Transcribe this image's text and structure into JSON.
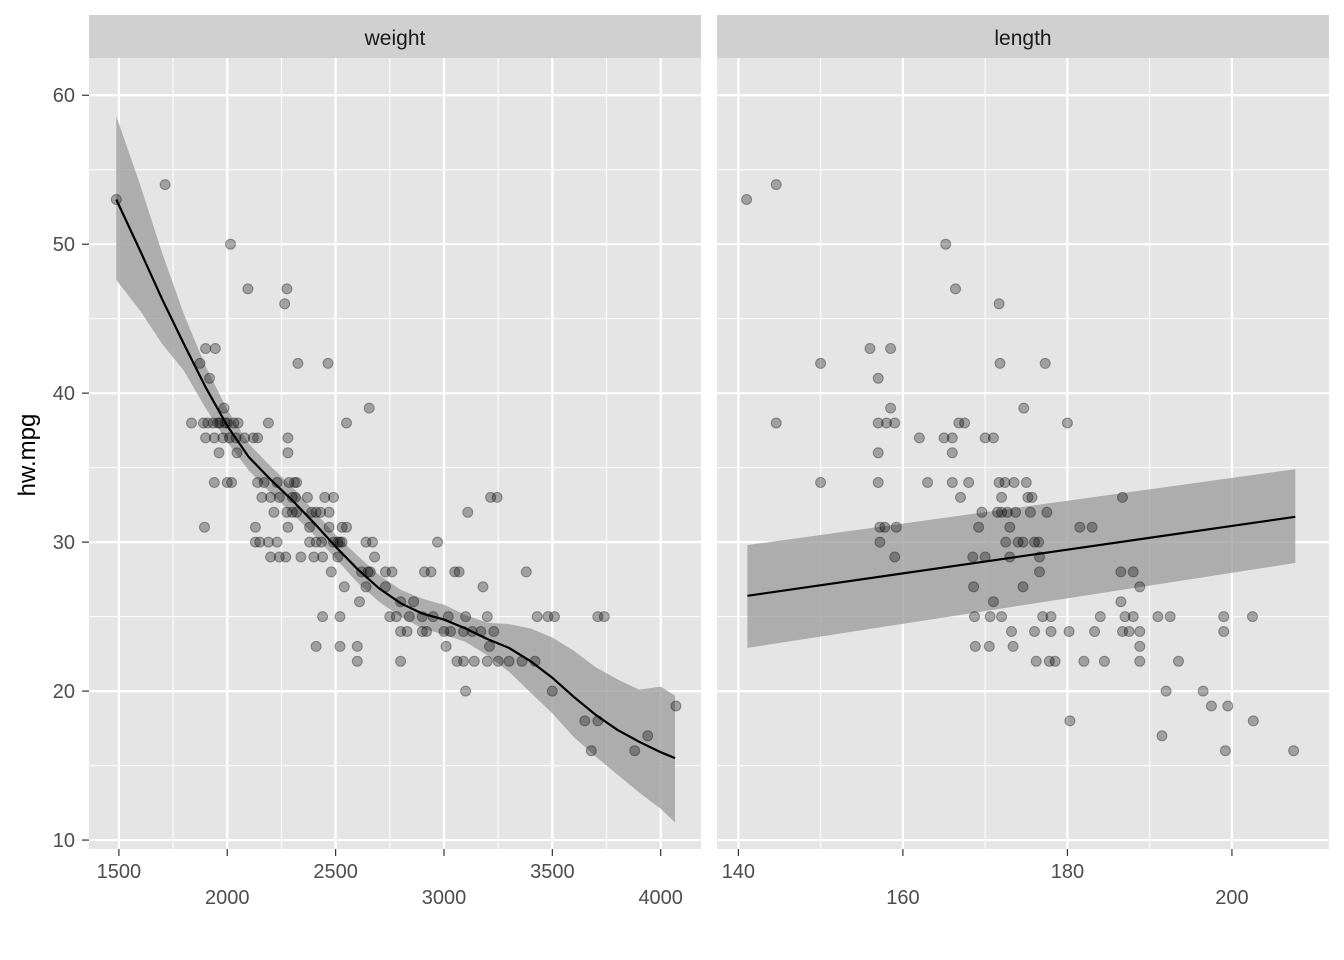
{
  "chart_data": {
    "type": "scatter",
    "ylabel": "hw.mpg",
    "ylim": [
      9.4,
      62.5
    ],
    "yticks": [
      10,
      20,
      30,
      40,
      50,
      60
    ],
    "colors": {
      "panel_bg": "#e5e5e5",
      "strip_bg": "#d0d0d0",
      "grid": "#ffffff",
      "point": "#000000",
      "ribbon": "#999999",
      "line": "#000000"
    },
    "panels": [
      {
        "strip": "weight",
        "xlim": [
          1362,
          4186
        ],
        "xticks": [
          1500,
          2000,
          2500,
          3000,
          3500,
          4000
        ],
        "xlabels_top": [
          "1500",
          "2500",
          "3500"
        ],
        "xlabels_bottom": [
          "2000",
          "3000",
          "4000"
        ],
        "points": [
          [
            1488,
            53
          ],
          [
            1713,
            54
          ],
          [
            1874,
            42
          ],
          [
            1900,
            43
          ],
          [
            1918,
            41
          ],
          [
            1945,
            43
          ],
          [
            2015,
            50
          ],
          [
            2095,
            47
          ],
          [
            2265,
            46
          ],
          [
            2275,
            47
          ],
          [
            2326,
            42
          ],
          [
            2465,
            42
          ],
          [
            2655,
            39
          ],
          [
            1985,
            39
          ],
          [
            1957,
            38
          ],
          [
            1990,
            38
          ],
          [
            1835,
            38
          ],
          [
            1890,
            38
          ],
          [
            1910,
            38
          ],
          [
            1935,
            38
          ],
          [
            1965,
            38
          ],
          [
            2000,
            38
          ],
          [
            2030,
            38
          ],
          [
            2050,
            38
          ],
          [
            2190,
            38
          ],
          [
            2550,
            38
          ],
          [
            1900,
            37
          ],
          [
            1940,
            37
          ],
          [
            1980,
            37
          ],
          [
            2010,
            37
          ],
          [
            2040,
            37
          ],
          [
            2080,
            37
          ],
          [
            2120,
            37
          ],
          [
            2140,
            37
          ],
          [
            2280,
            37
          ],
          [
            1962,
            36
          ],
          [
            2045,
            36
          ],
          [
            2280,
            36
          ],
          [
            1940,
            34
          ],
          [
            2000,
            34
          ],
          [
            2020,
            34
          ],
          [
            2140,
            34
          ],
          [
            2170,
            34
          ],
          [
            2230,
            34
          ],
          [
            2285,
            34
          ],
          [
            2310,
            34
          ],
          [
            2320,
            34
          ],
          [
            2160,
            33
          ],
          [
            2200,
            33
          ],
          [
            2240,
            33
          ],
          [
            2300,
            33
          ],
          [
            2315,
            33
          ],
          [
            2370,
            33
          ],
          [
            2450,
            33
          ],
          [
            2490,
            33
          ],
          [
            3215,
            33
          ],
          [
            3245,
            33
          ],
          [
            2215,
            32
          ],
          [
            2275,
            32
          ],
          [
            2300,
            32
          ],
          [
            2320,
            32
          ],
          [
            2390,
            32
          ],
          [
            2410,
            32
          ],
          [
            2430,
            32
          ],
          [
            2470,
            32
          ],
          [
            3110,
            32
          ],
          [
            1895,
            31
          ],
          [
            2130,
            31
          ],
          [
            2280,
            31
          ],
          [
            2380,
            31
          ],
          [
            2470,
            31
          ],
          [
            2530,
            31
          ],
          [
            2550,
            31
          ],
          [
            2380,
            30
          ],
          [
            2410,
            30
          ],
          [
            2435,
            30
          ],
          [
            2130,
            30
          ],
          [
            2150,
            30
          ],
          [
            2190,
            30
          ],
          [
            2230,
            30
          ],
          [
            2490,
            30
          ],
          [
            2510,
            30
          ],
          [
            2520,
            30
          ],
          [
            2530,
            30
          ],
          [
            2640,
            30
          ],
          [
            2670,
            30
          ],
          [
            2970,
            30
          ],
          [
            2200,
            29
          ],
          [
            2240,
            29
          ],
          [
            2270,
            29
          ],
          [
            2340,
            29
          ],
          [
            2400,
            29
          ],
          [
            2440,
            29
          ],
          [
            2510,
            29
          ],
          [
            2680,
            29
          ],
          [
            2480,
            28
          ],
          [
            2620,
            28
          ],
          [
            2650,
            28
          ],
          [
            2660,
            28
          ],
          [
            2730,
            28
          ],
          [
            2760,
            28
          ],
          [
            2910,
            28
          ],
          [
            2940,
            28
          ],
          [
            3050,
            28
          ],
          [
            3070,
            28
          ],
          [
            3380,
            28
          ],
          [
            2540,
            27
          ],
          [
            2640,
            27
          ],
          [
            2730,
            27
          ],
          [
            3180,
            27
          ],
          [
            2610,
            26
          ],
          [
            2800,
            26
          ],
          [
            2860,
            26
          ],
          [
            2440,
            25
          ],
          [
            2520,
            25
          ],
          [
            2750,
            25
          ],
          [
            2780,
            25
          ],
          [
            2840,
            25
          ],
          [
            2900,
            25
          ],
          [
            2950,
            25
          ],
          [
            3020,
            25
          ],
          [
            3100,
            25
          ],
          [
            3200,
            25
          ],
          [
            3430,
            25
          ],
          [
            3480,
            25
          ],
          [
            3510,
            25
          ],
          [
            3710,
            25
          ],
          [
            3740,
            25
          ],
          [
            2800,
            24
          ],
          [
            2830,
            24
          ],
          [
            2900,
            24
          ],
          [
            2920,
            24
          ],
          [
            3000,
            24
          ],
          [
            3030,
            24
          ],
          [
            3090,
            24
          ],
          [
            3130,
            24
          ],
          [
            3170,
            24
          ],
          [
            3230,
            24
          ],
          [
            2410,
            23
          ],
          [
            2520,
            23
          ],
          [
            2600,
            23
          ],
          [
            3010,
            23
          ],
          [
            3210,
            23
          ],
          [
            2600,
            22
          ],
          [
            2800,
            22
          ],
          [
            3060,
            22
          ],
          [
            3090,
            22
          ],
          [
            3140,
            22
          ],
          [
            3200,
            22
          ],
          [
            3250,
            22
          ],
          [
            3300,
            22
          ],
          [
            3360,
            22
          ],
          [
            3420,
            22
          ],
          [
            3100,
            20
          ],
          [
            3500,
            20
          ],
          [
            3650,
            18
          ],
          [
            3710,
            18
          ],
          [
            3880,
            16
          ],
          [
            3680,
            16
          ],
          [
            3940,
            17
          ],
          [
            4070,
            19
          ]
        ],
        "fit": {
          "x": [
            1488,
            1600,
            1700,
            1800,
            1900,
            2000,
            2100,
            2200,
            2300,
            2400,
            2500,
            2600,
            2700,
            2800,
            2900,
            3000,
            3100,
            3200,
            3300,
            3400,
            3500,
            3600,
            3700,
            3800,
            3900,
            4000,
            4066
          ],
          "y": [
            53,
            49.5,
            46.3,
            43.3,
            40.4,
            37.8,
            35.7,
            34.2,
            32.8,
            31.3,
            29.7,
            28.2,
            26.9,
            25.9,
            25.2,
            24.8,
            24.2,
            23.5,
            22.9,
            22.0,
            20.9,
            19.6,
            18.4,
            17.4,
            16.6,
            15.9,
            15.5
          ],
          "lower": [
            47.6,
            45.5,
            43.3,
            41.5,
            39.0,
            36.7,
            34.8,
            33.3,
            31.9,
            30.5,
            28.9,
            27.3,
            26.0,
            25.0,
            24.2,
            23.8,
            23.3,
            22.4,
            21.3,
            19.9,
            18.5,
            16.9,
            15.6,
            14.4,
            13.2,
            12.1,
            11.2
          ],
          "upper": [
            58.6,
            53.9,
            49.4,
            45.3,
            41.8,
            38.9,
            36.6,
            35.1,
            33.7,
            32.1,
            30.5,
            29.1,
            27.8,
            26.8,
            26.2,
            25.8,
            25.1,
            24.6,
            24.5,
            24.2,
            23.6,
            22.7,
            21.6,
            20.8,
            20.1,
            20.3,
            19.7
          ]
        }
      },
      {
        "strip": "length",
        "xlim": [
          137.4,
          211.8
        ],
        "xticks": [
          140,
          160,
          180,
          200
        ],
        "xlabels_top": [
          "140",
          "180"
        ],
        "xlabels_bottom": [
          "160",
          "200"
        ],
        "points": [
          [
            141,
            53
          ],
          [
            144.6,
            54
          ],
          [
            144.6,
            38
          ],
          [
            150,
            42
          ],
          [
            150,
            34
          ],
          [
            156,
            43
          ],
          [
            157,
            41
          ],
          [
            157,
            38
          ],
          [
            157,
            36
          ],
          [
            157,
            34
          ],
          [
            157.2,
            31
          ],
          [
            157.8,
            31
          ],
          [
            157.2,
            30
          ],
          [
            158,
            38
          ],
          [
            158.5,
            39
          ],
          [
            158.5,
            43
          ],
          [
            159,
            38
          ],
          [
            159.2,
            31
          ],
          [
            159,
            29
          ],
          [
            162,
            37
          ],
          [
            163,
            34
          ],
          [
            165,
            37
          ],
          [
            165.2,
            50
          ],
          [
            166,
            37
          ],
          [
            166.4,
            47
          ],
          [
            166,
            34
          ],
          [
            166,
            36
          ],
          [
            166.8,
            38
          ],
          [
            167,
            33
          ],
          [
            167.5,
            38
          ],
          [
            168,
            34
          ],
          [
            168.5,
            29
          ],
          [
            168.6,
            27
          ],
          [
            168.7,
            25
          ],
          [
            168.8,
            23
          ],
          [
            169.2,
            31
          ],
          [
            169.6,
            32
          ],
          [
            170,
            37
          ],
          [
            170,
            29
          ],
          [
            170.5,
            23
          ],
          [
            170.6,
            25
          ],
          [
            171,
            37
          ],
          [
            171,
            26
          ],
          [
            171.5,
            32
          ],
          [
            171.7,
            34
          ],
          [
            171.7,
            46
          ],
          [
            171.8,
            42
          ],
          [
            172,
            33
          ],
          [
            172,
            32
          ],
          [
            172,
            25
          ],
          [
            172.4,
            34
          ],
          [
            172.5,
            30
          ],
          [
            172.7,
            32
          ],
          [
            173,
            31
          ],
          [
            173,
            29
          ],
          [
            173.2,
            24
          ],
          [
            173.4,
            23
          ],
          [
            173.5,
            34
          ],
          [
            173.7,
            32
          ],
          [
            174,
            30
          ],
          [
            174.6,
            27
          ],
          [
            174.6,
            30
          ],
          [
            174.7,
            39
          ],
          [
            175,
            34
          ],
          [
            175.2,
            33
          ],
          [
            175.5,
            32
          ],
          [
            175.7,
            33
          ],
          [
            176,
            30
          ],
          [
            176,
            24
          ],
          [
            176.2,
            22
          ],
          [
            176.5,
            30
          ],
          [
            176.6,
            29
          ],
          [
            176.6,
            28
          ],
          [
            177,
            25
          ],
          [
            177.3,
            42
          ],
          [
            177.5,
            32
          ],
          [
            177.8,
            22
          ],
          [
            178,
            24
          ],
          [
            178,
            25
          ],
          [
            178.5,
            22
          ],
          [
            180,
            38
          ],
          [
            180.2,
            24
          ],
          [
            180.3,
            18
          ],
          [
            181.5,
            31
          ],
          [
            182,
            22
          ],
          [
            183,
            31
          ],
          [
            183.3,
            24
          ],
          [
            184,
            25
          ],
          [
            184.5,
            22
          ],
          [
            186.7,
            33
          ],
          [
            186.5,
            28
          ],
          [
            186.5,
            26
          ],
          [
            186.7,
            24
          ],
          [
            187,
            25
          ],
          [
            187.5,
            24
          ],
          [
            188,
            25
          ],
          [
            188,
            28
          ],
          [
            188.8,
            22
          ],
          [
            188.8,
            23
          ],
          [
            188.8,
            27
          ],
          [
            188.8,
            24
          ],
          [
            191,
            25
          ],
          [
            191.5,
            17
          ],
          [
            192,
            20
          ],
          [
            192.5,
            25
          ],
          [
            193.5,
            22
          ],
          [
            196.5,
            20
          ],
          [
            197.5,
            19
          ],
          [
            199,
            25
          ],
          [
            199,
            24
          ],
          [
            199.2,
            16
          ],
          [
            199.5,
            19
          ],
          [
            202.5,
            25
          ],
          [
            202.6,
            18
          ],
          [
            207.5,
            16
          ]
        ],
        "fit": {
          "x": [
            141.1,
            207.7
          ],
          "y": [
            26.4,
            31.7
          ],
          "lower": [
            22.9,
            28.6
          ],
          "upper": [
            29.8,
            34.9
          ]
        }
      }
    ]
  }
}
